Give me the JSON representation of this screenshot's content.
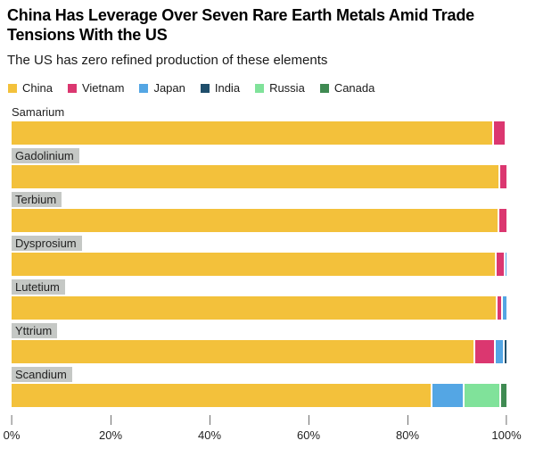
{
  "header": {
    "title": "China Has Leverage Over Seven Rare Earth Metals Amid Trade Tensions With the US",
    "subtitle": "The US has zero refined production of these elements"
  },
  "legend": [
    {
      "label": "China",
      "color": "#F3C13B"
    },
    {
      "label": "Vietnam",
      "color": "#DB3770"
    },
    {
      "label": "Japan",
      "color": "#54A6E4"
    },
    {
      "label": "India",
      "color": "#1F4E6B"
    },
    {
      "label": "Russia",
      "color": "#80E29A"
    },
    {
      "label": "Canada",
      "color": "#3F8A52"
    }
  ],
  "chart_data": {
    "type": "bar",
    "orientation": "horizontal",
    "stacked": true,
    "unit": "percent share of refined production",
    "title": "China Has Leverage Over Seven Rare Earth Metals Amid Trade Tensions With the US",
    "subtitle": "The US has zero refined production of these elements",
    "categories": [
      "Samarium",
      "Gadolinium",
      "Terbium",
      "Dysprosium",
      "Lutetium",
      "Yttrium",
      "Scandium"
    ],
    "label_highlighted": [
      false,
      true,
      true,
      true,
      true,
      true,
      true
    ],
    "series": [
      {
        "name": "China",
        "color": "#F3C13B",
        "values": [
          97.2,
          98.4,
          98.2,
          97.6,
          97.9,
          93.4,
          84.6
        ]
      },
      {
        "name": "Vietnam",
        "color": "#DB3770",
        "values": [
          2.4,
          1.6,
          1.8,
          1.9,
          1.1,
          4.1,
          0
        ]
      },
      {
        "name": "Japan",
        "color": "#54A6E4",
        "values": [
          0.4,
          0,
          0,
          0.5,
          1.0,
          1.7,
          6.6
        ]
      },
      {
        "name": "India",
        "color": "#1F4E6B",
        "values": [
          0,
          0,
          0,
          0,
          0,
          0.8,
          0
        ]
      },
      {
        "name": "Russia",
        "color": "#80E29A",
        "values": [
          0,
          0,
          0,
          0,
          0,
          0,
          7.3
        ]
      },
      {
        "name": "Canada",
        "color": "#3F8A52",
        "values": [
          0,
          0,
          0,
          0,
          0,
          0,
          1.5
        ]
      }
    ],
    "x_ticks": [
      "0%",
      "20%",
      "40%",
      "60%",
      "80%",
      "100%"
    ],
    "xlim": [
      0,
      100
    ],
    "grid": false,
    "legend_position": "top"
  }
}
